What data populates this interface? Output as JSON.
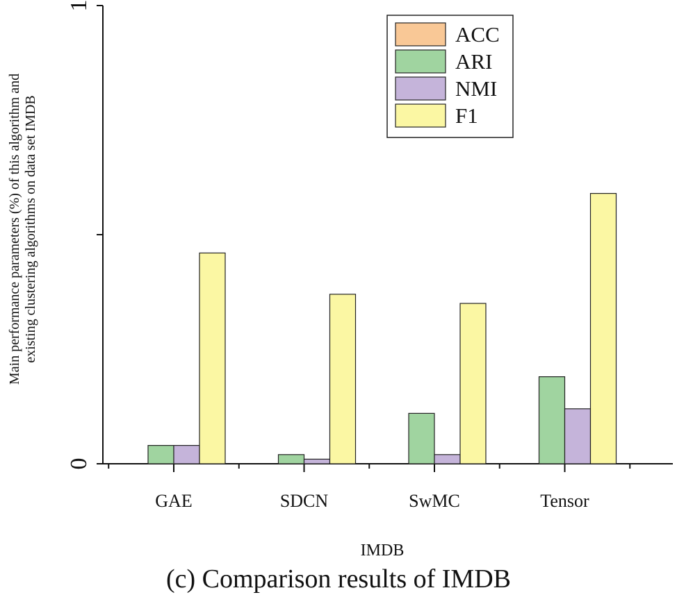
{
  "caption": "(c) Comparison results of IMDB",
  "chart_data": {
    "type": "bar",
    "title": "",
    "xlabel": "IMDB",
    "ylabel_lines": [
      "Main performance parameters (%) of this algorithm and",
      "existing clustering algorithms on data set IMDB"
    ],
    "ylim": [
      0,
      1
    ],
    "yticks": [
      {
        "value": 0,
        "label": "0"
      },
      {
        "value": 0.5,
        "label": ""
      },
      {
        "value": 1,
        "label": "1"
      }
    ],
    "categories": [
      "GAE",
      "SDCN",
      "SwMC",
      "Tensor"
    ],
    "series": [
      {
        "name": "ACC",
        "color": "#f9c896",
        "values": [
          0,
          0,
          0,
          0
        ]
      },
      {
        "name": "ARI",
        "color": "#a0d4a0",
        "values": [
          0.04,
          0.02,
          0.11,
          0.19
        ]
      },
      {
        "name": "NMI",
        "color": "#c5b4da",
        "values": [
          0.04,
          0.01,
          0.02,
          0.12
        ]
      },
      {
        "name": "F1",
        "color": "#fbf7a3",
        "values": [
          0.46,
          0.37,
          0.35,
          0.59
        ]
      }
    ],
    "grid": false,
    "legend_position": "top-right"
  }
}
